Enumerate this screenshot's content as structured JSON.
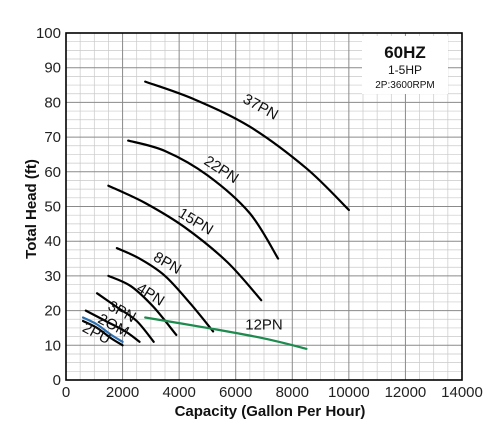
{
  "chart_data": {
    "type": "line",
    "title": "",
    "xlabel": "Capacity (Gallon Per Hour)",
    "ylabel": "Total Head (ft)",
    "xlim": [
      0,
      14000
    ],
    "ylim": [
      0,
      100
    ],
    "x_ticks": [
      "0",
      "2000",
      "4000",
      "6000",
      "8000",
      "10000",
      "12000",
      "14000"
    ],
    "y_ticks": [
      "0",
      "10",
      "20",
      "30",
      "40",
      "50",
      "60",
      "70",
      "80",
      "90",
      "100"
    ],
    "grid": true,
    "legend_box": {
      "position": "top-right",
      "line1": "60HZ",
      "line2": "1-5HP",
      "line3": "2P:3600RPM"
    },
    "series": [
      {
        "name": "37PN",
        "color": "#000000",
        "x": [
          2800,
          4500,
          6500,
          8500,
          10000
        ],
        "y": [
          86,
          81,
          73,
          61,
          49
        ]
      },
      {
        "name": "22PN",
        "color": "#000000",
        "x": [
          2200,
          3500,
          5000,
          6500,
          7500
        ],
        "y": [
          69,
          66,
          59,
          48,
          35
        ]
      },
      {
        "name": "15PN",
        "color": "#000000",
        "x": [
          1500,
          2800,
          4200,
          5700,
          6900
        ],
        "y": [
          56,
          51,
          44,
          34,
          23
        ]
      },
      {
        "name": "8PN",
        "color": "#000000",
        "x": [
          1800,
          2600,
          3500,
          4400,
          5200
        ],
        "y": [
          38,
          35,
          30,
          22,
          14
        ]
      },
      {
        "name": "4PN",
        "color": "#000000",
        "x": [
          1500,
          2300,
          3100,
          3900
        ],
        "y": [
          30,
          27,
          21,
          13
        ]
      },
      {
        "name": "3PN",
        "color": "#000000",
        "x": [
          1100,
          1800,
          2500,
          3100
        ],
        "y": [
          25,
          21,
          17,
          11
        ]
      },
      {
        "name": "2OM",
        "color": "#000000",
        "x": [
          700,
          1400,
          2100,
          2600
        ],
        "y": [
          20,
          17,
          14,
          11
        ]
      },
      {
        "name": "2PU",
        "color": "#000000",
        "x": [
          600,
          1100,
          1600,
          2000
        ],
        "y": [
          17,
          15,
          12,
          10
        ]
      },
      {
        "name": "12PN",
        "color": "#1d8a4e",
        "x": [
          2800,
          5000,
          7000,
          8500
        ],
        "y": [
          18,
          15,
          12,
          9
        ]
      }
    ],
    "blue_curve": {
      "color": "#2b6fb0",
      "x": [
        600,
        1100,
        1600,
        2000
      ],
      "y": [
        18,
        16,
        13,
        11
      ]
    }
  }
}
